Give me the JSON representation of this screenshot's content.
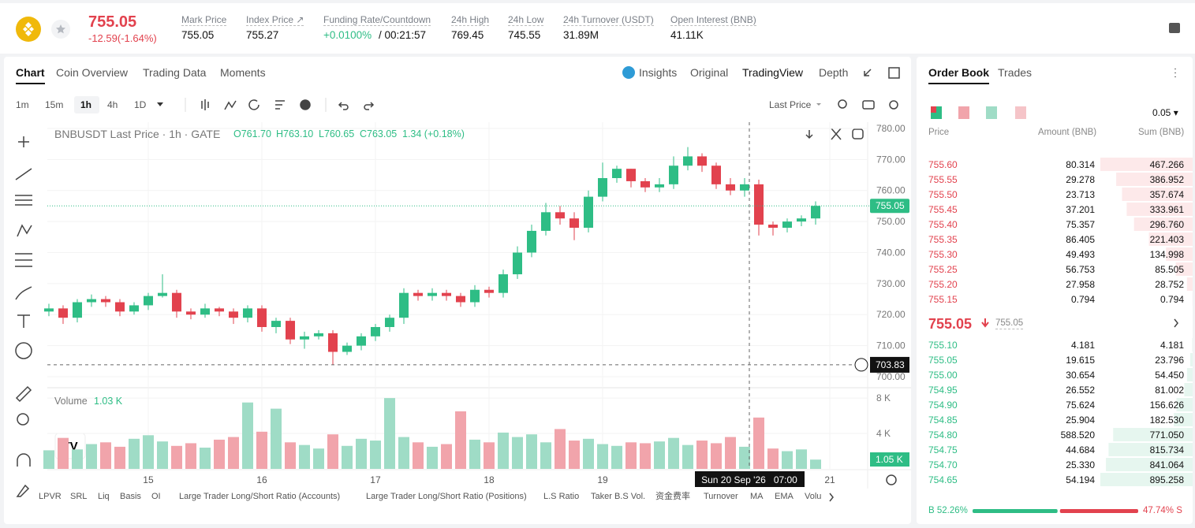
{
  "header": {
    "price": "755.05",
    "change": "-12.59(-1.64%)",
    "stats": [
      {
        "label": "Mark Price",
        "value": "755.05"
      },
      {
        "label": "Index Price ↗",
        "value": "755.27"
      },
      {
        "label": "Funding Rate/Countdown",
        "value": "+0.0100%",
        "extra": "/ 00:21:57"
      },
      {
        "label": "24h High",
        "value": "769.45"
      },
      {
        "label": "24h Low",
        "value": "745.55"
      },
      {
        "label": "24h Turnover (USDT)",
        "value": "31.89M"
      },
      {
        "label": "Open Interest (BNB)",
        "value": "41.11K"
      }
    ]
  },
  "chart_tabs": [
    "Chart",
    "Coin Overview",
    "Trading Data",
    "Moments"
  ],
  "view_tabs": [
    "Insights",
    "Original",
    "TradingView",
    "Depth"
  ],
  "intervals": [
    "1m",
    "15m",
    "1h",
    "4h",
    "1D"
  ],
  "price_type": "Last Price",
  "legend": {
    "symbol": "BNBUSDT Last Price · 1h · GATE",
    "ohlc": [
      "O761.70",
      "H763.10",
      "L760.65",
      "C763.05"
    ],
    "change": "1.34 (+0.18%)"
  },
  "volume_legend": {
    "label": "Volume",
    "value": "1.03 K"
  },
  "volume_tag": "1.05 K",
  "indicators": [
    "LPVR",
    "SRL",
    "Liq",
    "Basis",
    "OI",
    "Large Trader Long/Short Ratio (Accounts)",
    "Large Trader Long/Short Ratio (Positions)",
    "L.S Ratio",
    "Taker B.S Vol.",
    "资金费率",
    "Turnover",
    "MA",
    "EMA",
    "Volu"
  ],
  "chart_data": {
    "type": "candlestick",
    "up_color": "#2ebd85",
    "down_color": "#e2424e",
    "x": [
      3,
      6,
      9,
      12,
      15,
      18,
      21,
      24,
      27,
      30,
      33,
      36,
      39,
      42,
      45,
      48,
      51,
      54,
      57,
      60,
      63,
      66,
      69,
      72,
      75,
      78,
      81,
      84,
      87,
      90,
      93,
      96,
      99,
      102,
      105,
      108,
      111,
      114,
      117,
      120,
      123,
      126,
      129,
      132,
      135,
      138,
      141,
      144,
      147,
      150,
      153,
      156,
      159,
      162,
      165
    ],
    "open": [
      721,
      722,
      719,
      724,
      725,
      724,
      721,
      723,
      726,
      727,
      721,
      720,
      722,
      721,
      719,
      722,
      716,
      718,
      712,
      713,
      714,
      708,
      710,
      713,
      716,
      719,
      727,
      726,
      727,
      726,
      724,
      728,
      727,
      733,
      740,
      747,
      753,
      751,
      748,
      758,
      764,
      767,
      763,
      761,
      762,
      768,
      771,
      768,
      762,
      760,
      762,
      749,
      748,
      750,
      751
    ],
    "high": [
      723.5,
      723,
      725,
      726.5,
      726,
      725,
      724,
      727,
      733,
      728,
      722,
      723.5,
      722.5,
      722,
      723,
      723,
      719,
      719,
      714.5,
      715,
      715,
      711,
      714,
      717,
      720,
      728.5,
      728,
      728.5,
      728,
      727,
      729.5,
      729,
      734.5,
      742,
      749,
      756,
      755,
      753,
      760,
      769,
      768,
      767,
      764,
      764,
      771,
      774,
      772,
      769,
      764,
      764,
      763.5,
      750,
      751,
      752,
      756.5
    ],
    "low": [
      719.5,
      717,
      717.5,
      722.5,
      722.5,
      719.5,
      720,
      721.5,
      725.5,
      719,
      718.5,
      719,
      719.5,
      717,
      717.5,
      714.5,
      714,
      710.5,
      709,
      712,
      703.83,
      707,
      708.5,
      711.5,
      714.5,
      717,
      724.5,
      724.5,
      724.5,
      722.5,
      722.5,
      725.5,
      725.5,
      731.5,
      738.5,
      745.5,
      749,
      744,
      746.5,
      756.5,
      762.5,
      761,
      759.5,
      759.5,
      760.5,
      766.5,
      766,
      760.5,
      758.5,
      758,
      745.5,
      745.5,
      746.5,
      748.5,
      749
    ],
    "close": [
      722,
      719,
      724,
      725,
      724,
      721,
      723,
      726,
      727,
      721,
      720,
      722,
      721,
      719,
      722,
      716,
      718,
      712,
      713,
      714,
      708,
      710,
      713,
      716,
      719,
      727,
      726,
      727,
      726,
      724,
      728,
      727,
      733,
      740,
      747,
      753,
      751,
      748,
      758,
      764,
      767,
      763,
      761,
      762,
      768,
      771,
      768,
      762,
      760,
      762,
      749,
      748,
      750,
      751,
      755.05
    ],
    "volume": [
      2.1,
      3.5,
      2.2,
      2.8,
      3.0,
      2.5,
      3.4,
      3.8,
      3.1,
      2.6,
      2.9,
      2.4,
      3.3,
      3.6,
      7.5,
      4.2,
      6.8,
      3.0,
      2.7,
      2.3,
      3.9,
      2.6,
      3.4,
      3.2,
      8.0,
      3.6,
      3.0,
      2.5,
      2.8,
      6.5,
      3.3,
      3.0,
      4.1,
      3.6,
      3.9,
      3.0,
      4.5,
      3.2,
      3.4,
      2.8,
      2.6,
      3.0,
      2.9,
      3.1,
      3.5,
      2.7,
      3.2,
      2.9,
      3.6,
      2.5,
      5.8,
      2.3,
      2.0,
      2.2,
      1.05
    ],
    "xlim": [
      2.67,
      176
    ],
    "xticks": [
      {
        "value": 24,
        "label": "15"
      },
      {
        "value": 48,
        "label": "16"
      },
      {
        "value": 72,
        "label": "17"
      },
      {
        "value": 96,
        "label": "18"
      },
      {
        "value": 120,
        "label": "19"
      },
      {
        "value": 168,
        "label": "21"
      }
    ],
    "ylim": [
      696.95,
      782.03
    ],
    "yticks": [
      {
        "value": 700,
        "label": "700.00"
      },
      {
        "value": 710,
        "label": "710.00"
      },
      {
        "value": 720,
        "label": "720.00"
      },
      {
        "value": 730,
        "label": "730.00"
      },
      {
        "value": 740,
        "label": "740.00"
      },
      {
        "value": 750,
        "label": "750.00"
      },
      {
        "value": 760,
        "label": "760.00"
      },
      {
        "value": 770,
        "label": "770.00"
      },
      {
        "value": 780,
        "label": "780.00"
      }
    ],
    "volume_ylim": [
      0,
      8.9
    ],
    "volume_yticks": [
      {
        "value": 4,
        "label": "4 K"
      },
      {
        "value": 8,
        "label": "8 K"
      }
    ],
    "grid": true,
    "crosshair_x": 151,
    "crosshair_label": "Sun 20 Sep '26   07:00",
    "crosshair_price": 703.83
  },
  "order_book": {
    "tabs": [
      "Order Book",
      "Trades"
    ],
    "step": "0.05 ▾",
    "columns": [
      "Price",
      "Amount (BNB)",
      "Sum (BNB)"
    ],
    "asks": [
      [
        "755.60",
        "80.314",
        "467.266"
      ],
      [
        "755.55",
        "29.278",
        "386.952"
      ],
      [
        "755.50",
        "23.713",
        "357.674"
      ],
      [
        "755.45",
        "37.201",
        "333.961"
      ],
      [
        "755.40",
        "75.357",
        "296.760"
      ],
      [
        "755.35",
        "86.405",
        "221.403"
      ],
      [
        "755.30",
        "49.493",
        "134.998"
      ],
      [
        "755.25",
        "56.753",
        "85.505"
      ],
      [
        "755.20",
        "27.958",
        "28.752"
      ],
      [
        "755.15",
        "0.794",
        "0.794"
      ]
    ],
    "mid_price": "755.05",
    "mid_mark": "755.05",
    "bids": [
      [
        "755.10",
        "4.181",
        "4.181"
      ],
      [
        "755.05",
        "19.615",
        "23.796"
      ],
      [
        "755.00",
        "30.654",
        "54.450"
      ],
      [
        "754.95",
        "26.552",
        "81.002"
      ],
      [
        "754.90",
        "75.624",
        "156.626"
      ],
      [
        "754.85",
        "25.904",
        "182.530"
      ],
      [
        "754.80",
        "588.520",
        "771.050"
      ],
      [
        "754.75",
        "44.684",
        "815.734"
      ],
      [
        "754.70",
        "25.330",
        "841.064"
      ],
      [
        "754.65",
        "54.194",
        "895.258"
      ]
    ],
    "buy_label": "B 52.26%",
    "sell_label": "47.74% S",
    "buy_ratio": 52.26,
    "sell_ratio": 47.74
  }
}
